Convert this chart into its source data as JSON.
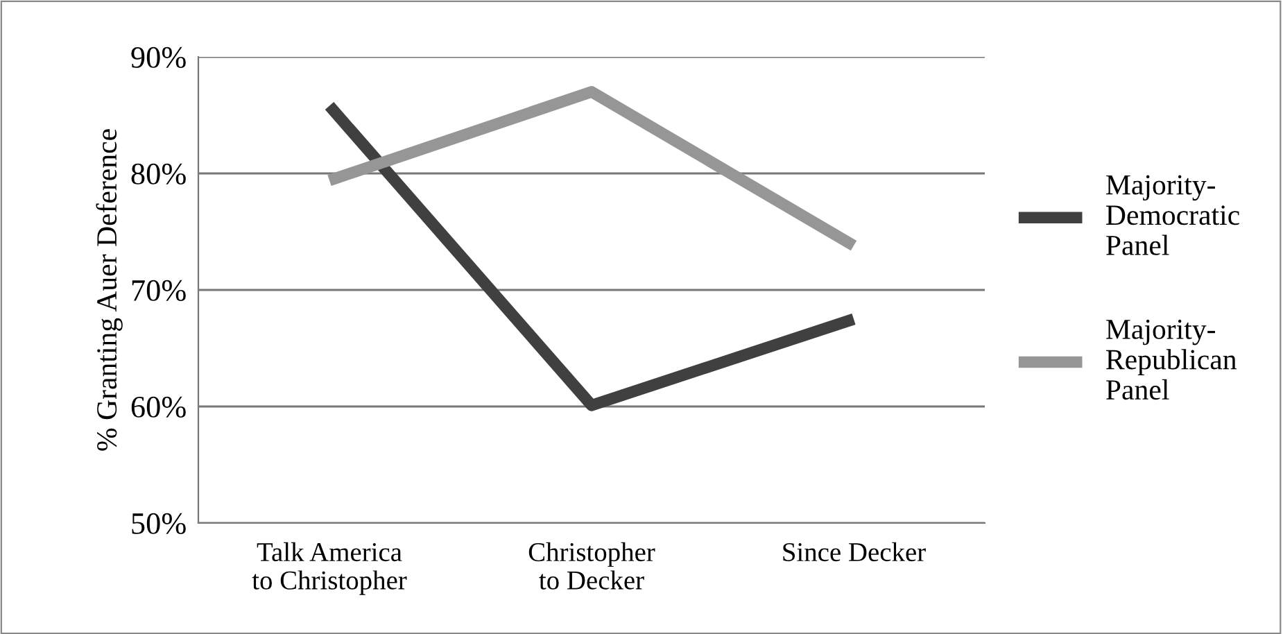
{
  "chart_data": {
    "type": "line",
    "ylabel": "% Granting Auer Deference",
    "categories": [
      "Talk America\nto Christopher",
      "Christopher\nto Decker",
      "Since Decker"
    ],
    "series": [
      {
        "name": "Majority-\nDemocratic\nPanel",
        "color": "#404040",
        "values": [
          85.8,
          60.1,
          67.5
        ]
      },
      {
        "name": "Majority-\nRepublican\nPanel",
        "color": "#969696",
        "values": [
          79.4,
          87.0,
          73.8
        ]
      }
    ],
    "ylim": [
      50,
      90
    ],
    "yticks": [
      {
        "value": 50,
        "label": "50%"
      },
      {
        "value": 60,
        "label": "60%"
      },
      {
        "value": 70,
        "label": "70%"
      },
      {
        "value": 80,
        "label": "80%"
      },
      {
        "value": 90,
        "label": "90%"
      }
    ],
    "grid": "y",
    "legend": "right",
    "marker": "none",
    "line_style": "solid"
  }
}
